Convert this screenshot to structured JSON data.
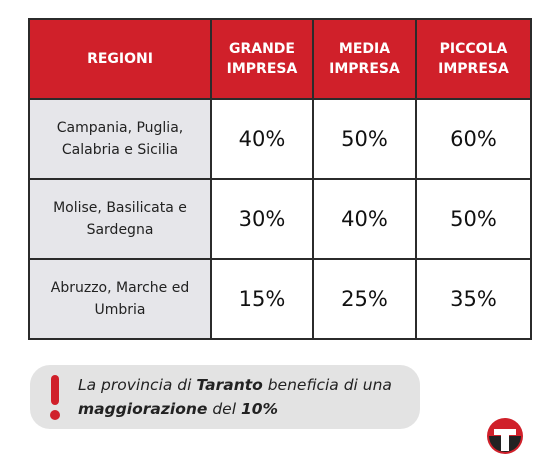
{
  "table": {
    "header": [
      "REGIONI",
      "GRANDE IMPRESA",
      "MEDIA IMPRESA",
      "PICCOLA IMPRESA"
    ],
    "rows": [
      [
        "Campania, Puglia, Calabria e Sicilia",
        "40%",
        "50%",
        "60%"
      ],
      [
        "Molise, Basilicata e Sardegna",
        "30%",
        "40%",
        "50%"
      ],
      [
        "Abruzzo, Marche ed Umbria",
        "15%",
        "25%",
        "35%"
      ]
    ]
  },
  "note": {
    "segments": [
      "La provincia di ",
      "Taranto",
      " beneficia di una ",
      "maggiorazione",
      " del ",
      "10%"
    ]
  }
}
